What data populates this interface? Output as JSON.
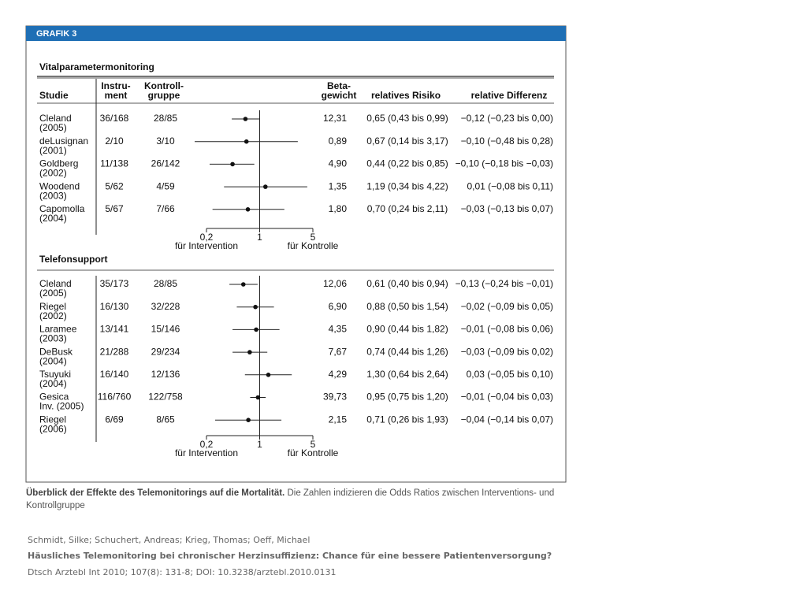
{
  "figure": {
    "label": "GRAFIK 3",
    "headers": {
      "study": "Studie",
      "instrument": [
        "Instru-",
        "ment"
      ],
      "control": [
        "Kontroll-",
        "gruppe"
      ],
      "weight": [
        "Beta-",
        "gewicht"
      ],
      "rr": "relatives Risiko",
      "diff": "relative Differenz"
    },
    "sections": [
      {
        "title": "Vitalparametermonitoring",
        "rows": [
          {
            "name": "Cleland",
            "year": "(2005)",
            "instrument": "36/168",
            "control": "28/85",
            "weight": "12,31",
            "or": 0.65,
            "lo": 0.43,
            "hi": 0.99,
            "rr": "0,65 (0,43 bis 0,99)",
            "diff": "−0,12 (−0,23 bis 0,00)"
          },
          {
            "name": "deLusignan",
            "year": "(2001)",
            "instrument": "2/10",
            "control": "3/10",
            "weight": "0,89",
            "or": 0.67,
            "lo": 0.14,
            "hi": 3.17,
            "rr": "0,67 (0,14 bis 3,17)",
            "diff": "−0,10 (−0,48 bis 0,28)"
          },
          {
            "name": "Goldberg",
            "year": "(2002)",
            "instrument": "11/138",
            "control": "26/142",
            "weight": "4,90",
            "or": 0.44,
            "lo": 0.22,
            "hi": 0.85,
            "rr": "0,44 (0,22 bis 0,85)",
            "diff": "−0,10 (−0,18 bis −0,03)"
          },
          {
            "name": "Woodend",
            "year": "(2003)",
            "instrument": "5/62",
            "control": "4/59",
            "weight": "1,35",
            "or": 1.19,
            "lo": 0.34,
            "hi": 4.22,
            "rr": "1,19 (0,34 bis 4,22)",
            "diff": "0,01 (−0,08 bis 0,11)"
          },
          {
            "name": "Capomolla",
            "year": "(2004)",
            "instrument": "5/67",
            "control": "7/66",
            "weight": "1,80",
            "or": 0.7,
            "lo": 0.24,
            "hi": 2.11,
            "rr": "0,70 (0,24 bis 2,11)",
            "diff": "−0,03 (−0,13 bis 0,07)"
          }
        ],
        "axis": {
          "log": true,
          "xlim": [
            0.2,
            5
          ],
          "xticks": [
            {
              "value": 0.2,
              "label": "0,2"
            },
            1,
            5
          ],
          "left_label": "für Intervention",
          "right_label": "für Kontrolle"
        }
      },
      {
        "title": "Telefonsupport",
        "rows": [
          {
            "name": "Cleland",
            "year": "(2005)",
            "instrument": "35/173",
            "control": "28/85",
            "weight": "12,06",
            "or": 0.61,
            "lo": 0.4,
            "hi": 0.94,
            "rr": "0,61 (0,40 bis 0,94)",
            "diff": "−0,13 (−0,24 bis −0,01)"
          },
          {
            "name": "Riegel",
            "year": "(2002)",
            "instrument": "16/130",
            "control": "32/228",
            "weight": "6,90",
            "or": 0.88,
            "lo": 0.5,
            "hi": 1.54,
            "rr": "0,88 (0,50 bis 1,54)",
            "diff": "−0,02 (−0,09 bis 0,05)"
          },
          {
            "name": "Laramee",
            "year": "(2003)",
            "instrument": "13/141",
            "control": "15/146",
            "weight": "4,35",
            "or": 0.9,
            "lo": 0.44,
            "hi": 1.82,
            "rr": "0,90 (0,44 bis 1,82)",
            "diff": "−0,01 (−0,08 bis 0,06)"
          },
          {
            "name": "DeBusk",
            "year": "(2004)",
            "instrument": "21/288",
            "control": "29/234",
            "weight": "7,67",
            "or": 0.74,
            "lo": 0.44,
            "hi": 1.26,
            "rr": "0,74 (0,44 bis 1,26)",
            "diff": "−0,03 (−0,09 bis 0,02)"
          },
          {
            "name": "Tsuyuki",
            "year": "(2004)",
            "instrument": "16/140",
            "control": "12/136",
            "weight": "4,29",
            "or": 1.3,
            "lo": 0.64,
            "hi": 2.64,
            "rr": "1,30 (0,64 bis 2,64)",
            "diff": "0,03 (−0,05 bis 0,10)"
          },
          {
            "name": "Gesica",
            "year": "Inv. (2005)",
            "instrument": "116/760",
            "control": "122/758",
            "weight": "39,73",
            "or": 0.95,
            "lo": 0.75,
            "hi": 1.2,
            "rr": "0,95 (0,75 bis 1,20)",
            "diff": "−0,01 (−0,04 bis 0,03)"
          },
          {
            "name": "Riegel",
            "year": "(2006)",
            "instrument": "6/69",
            "control": "8/65",
            "weight": "2,15",
            "or": 0.71,
            "lo": 0.26,
            "hi": 1.93,
            "rr": "0,71 (0,26 bis 1,93)",
            "diff": "−0,04 (−0,14 bis 0,07)"
          }
        ],
        "axis": {
          "log": true,
          "xlim": [
            0.2,
            5
          ],
          "xticks": [
            {
              "value": 0.2,
              "label": "0,2"
            },
            1,
            5
          ],
          "left_label": "für Intervention",
          "right_label": "für Kontrolle"
        }
      }
    ],
    "caption_bold": "Überblick der Effekte des Telemonitorings auf die Mortalität.",
    "caption": "Die Zahlen indizieren die Odds Ratios zwischen Interventions- und Kontrollgruppe"
  },
  "citation": {
    "authors": "Schmidt, Silke; Schuchert, Andreas; Krieg, Thomas; Oeff, Michael",
    "title": "Häusliches Telemonitoring bei chronischer Herzinsuffizienz: Chance für eine bessere Patientenversorgung?",
    "source": "Dtsch Arztebl Int 2010; 107(8): 131-8; DOI: 10.3238/arztebl.2010.0131"
  }
}
